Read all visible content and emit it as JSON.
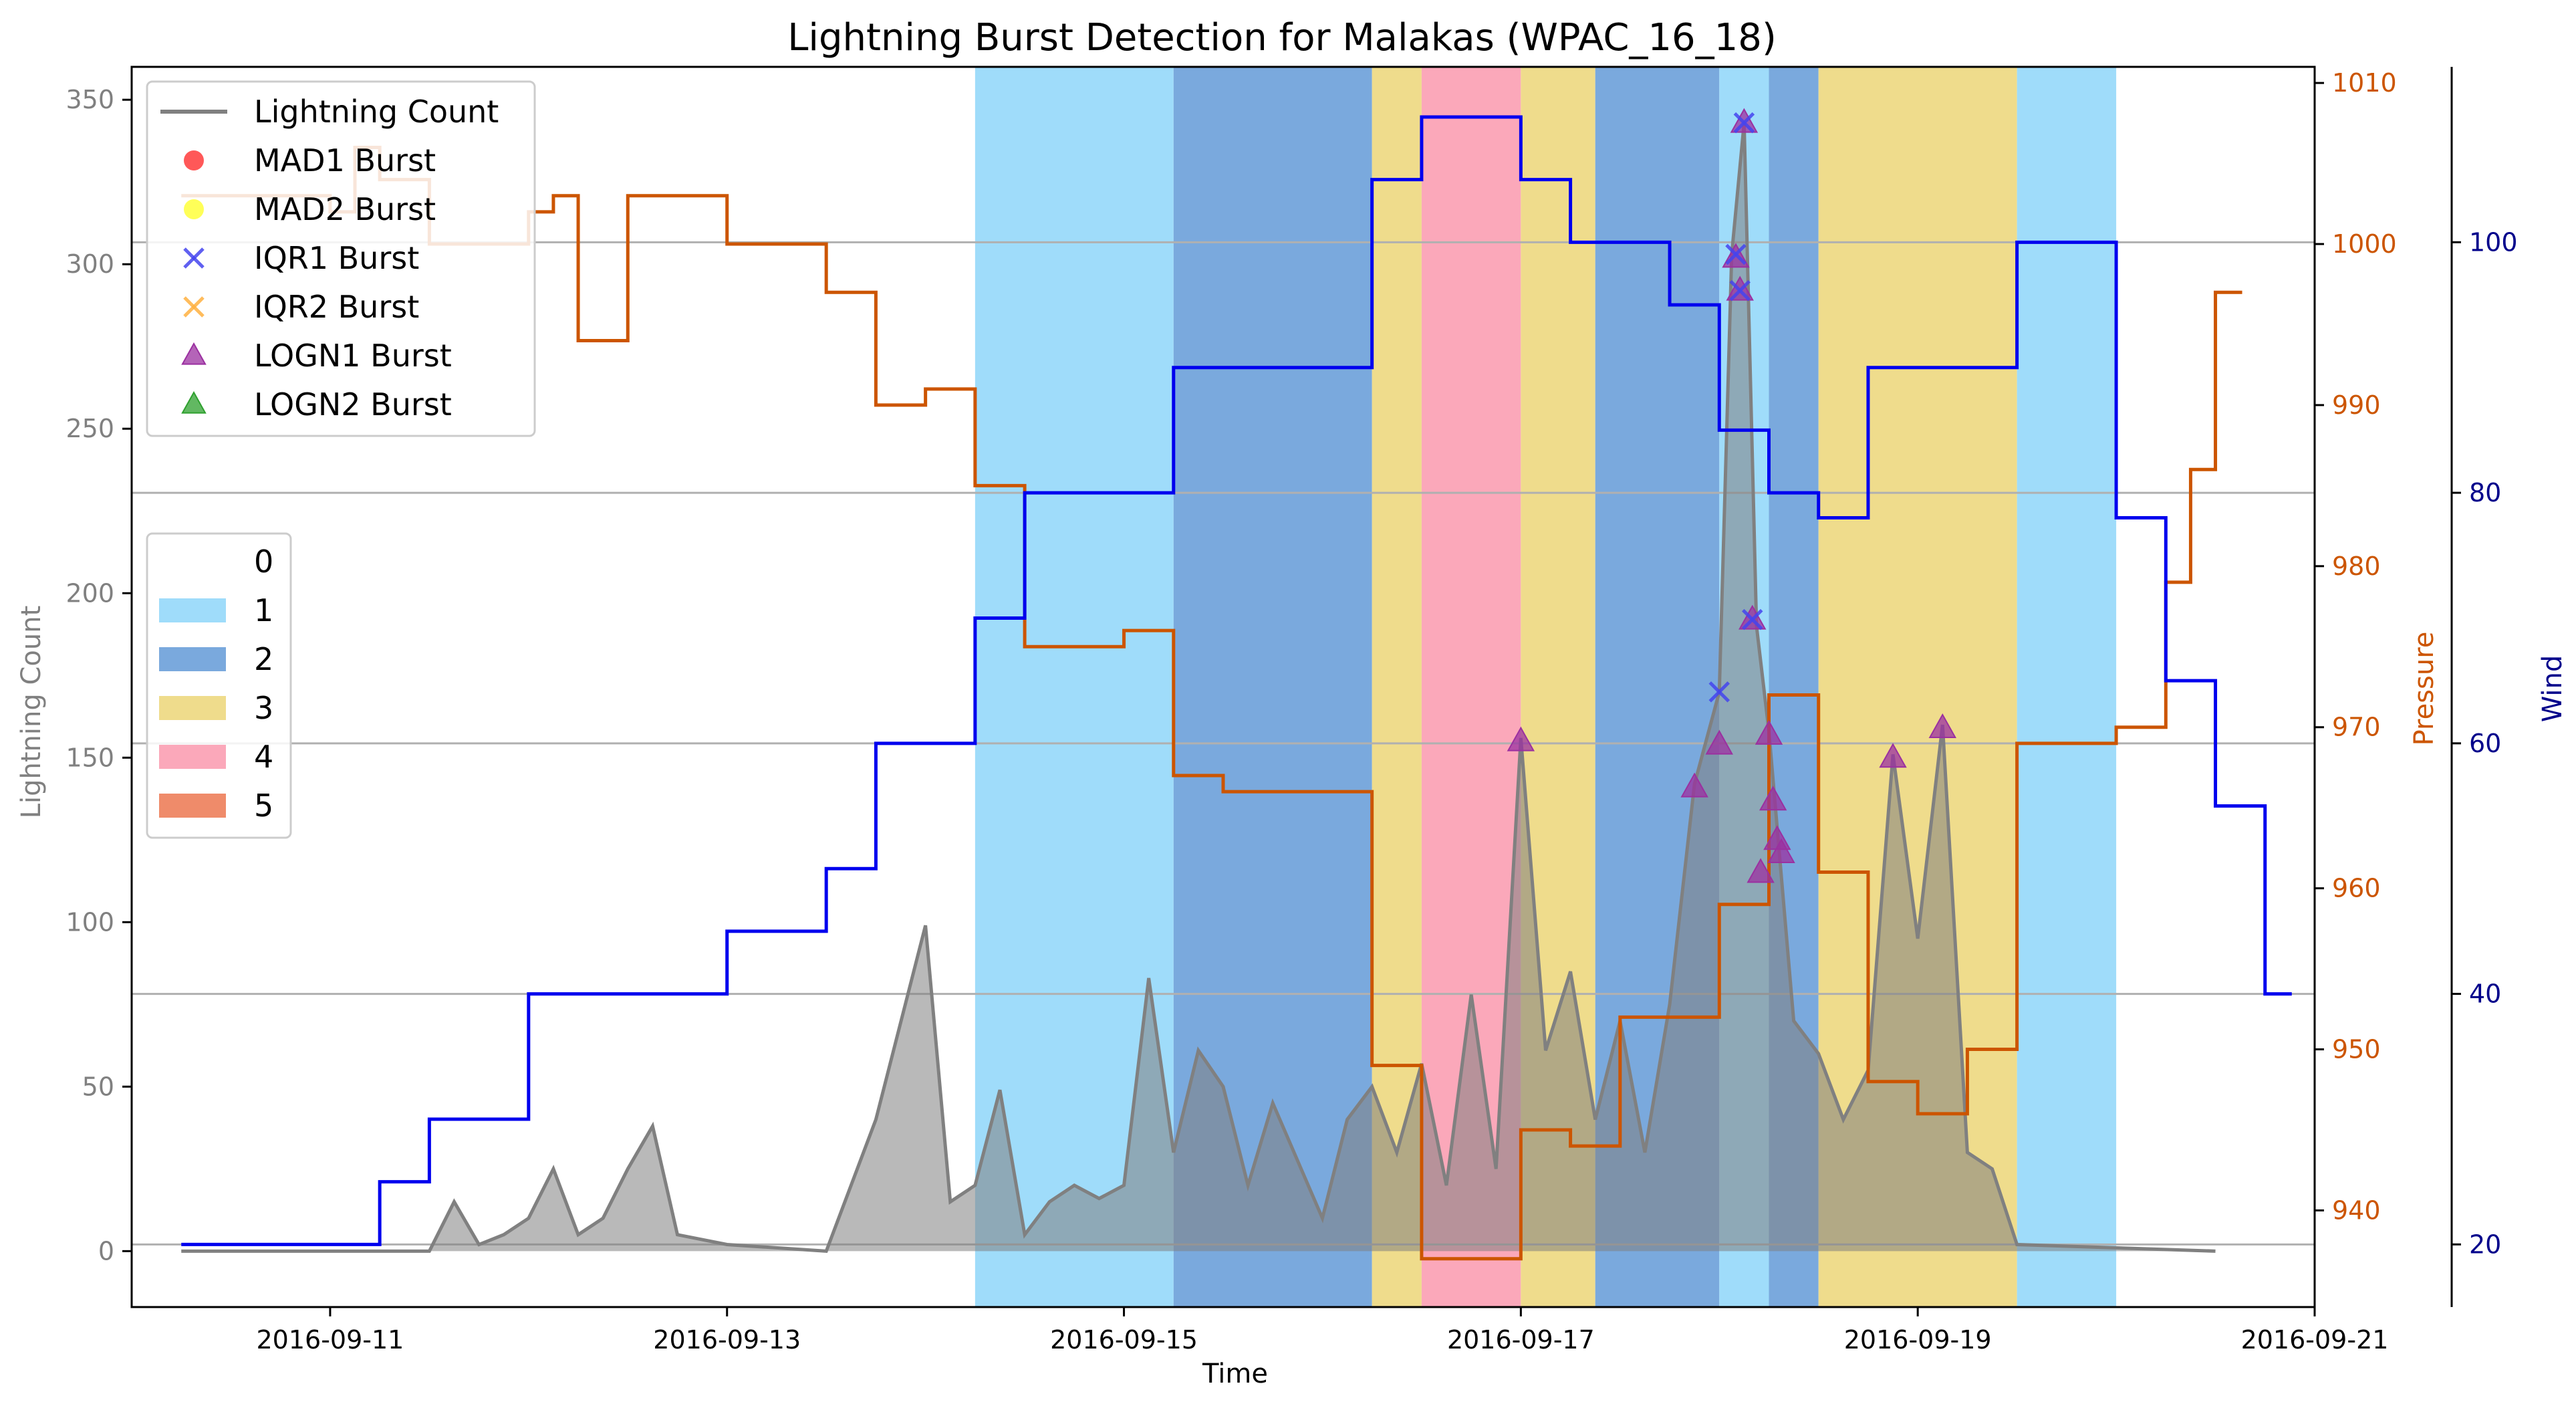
{
  "chart_data": {
    "type": "line",
    "title": "Lightning Burst Detection for Malakas (WPAC_16_18)",
    "xlabel": "Time",
    "x_ticks": [
      "2016-09-11",
      "2016-09-13",
      "2016-09-15",
      "2016-09-17",
      "2016-09-19",
      "2016-09-21"
    ],
    "x_range": [
      "2016-09-10T00:00",
      "2016-09-21T00:00"
    ],
    "y_left": {
      "label": "Lightning Count",
      "range": [
        -17,
        360
      ],
      "ticks": [
        0,
        50,
        100,
        150,
        200,
        250,
        300,
        350
      ],
      "color": "#808080"
    },
    "y_right_pressure": {
      "label": "Pressure",
      "range": [
        934,
        1011
      ],
      "ticks": [
        940,
        950,
        960,
        970,
        980,
        990,
        1000,
        1010
      ],
      "color": "#cc5500"
    },
    "y_right_wind": {
      "label": "Wind",
      "range": [
        15,
        114
      ],
      "ticks": [
        20,
        40,
        60,
        80,
        100
      ],
      "color": "#00008b"
    },
    "grid": {
      "y_gridlines_at_wind": [
        20,
        40,
        60,
        80,
        100
      ]
    },
    "category_colors": {
      "0": "#ffffff",
      "1": "#9fdcfa",
      "2": "#7aa9dd",
      "3": "#efdc8c",
      "4": "#fba8ba",
      "5": "#ef8b6a"
    },
    "category_spans": [
      {
        "start": "2016-09-14T06:00",
        "end": "2016-09-15T06:00",
        "category": "1"
      },
      {
        "start": "2016-09-15T06:00",
        "end": "2016-09-16T06:00",
        "category": "2"
      },
      {
        "start": "2016-09-16T06:00",
        "end": "2016-09-16T12:00",
        "category": "3"
      },
      {
        "start": "2016-09-16T12:00",
        "end": "2016-09-17T00:00",
        "category": "4"
      },
      {
        "start": "2016-09-17T00:00",
        "end": "2016-09-17T09:00",
        "category": "3"
      },
      {
        "start": "2016-09-17T09:00",
        "end": "2016-09-18T00:00",
        "category": "2"
      },
      {
        "start": "2016-09-18T00:00",
        "end": "2016-09-18T06:00",
        "category": "1"
      },
      {
        "start": "2016-09-18T06:00",
        "end": "2016-09-18T12:00",
        "category": "2"
      },
      {
        "start": "2016-09-18T12:00",
        "end": "2016-09-19T12:00",
        "category": "3"
      },
      {
        "start": "2016-09-19T12:00",
        "end": "2016-09-20T00:00",
        "category": "1"
      }
    ],
    "pressure_series": {
      "name": "Pressure",
      "steps": [
        [
          "2016-09-10T06:00",
          1003
        ],
        [
          "2016-09-11T00:00",
          1002
        ],
        [
          "2016-09-11T03:00",
          1006
        ],
        [
          "2016-09-11T06:00",
          1004
        ],
        [
          "2016-09-11T12:00",
          1000
        ],
        [
          "2016-09-12T00:00",
          1002
        ],
        [
          "2016-09-12T03:00",
          1003
        ],
        [
          "2016-09-12T06:00",
          994
        ],
        [
          "2016-09-12T12:00",
          1003
        ],
        [
          "2016-09-13T00:00",
          1000
        ],
        [
          "2016-09-13T12:00",
          997
        ],
        [
          "2016-09-13T18:00",
          990
        ],
        [
          "2016-09-14T00:00",
          991
        ],
        [
          "2016-09-14T06:00",
          985
        ],
        [
          "2016-09-14T12:00",
          975
        ],
        [
          "2016-09-15T00:00",
          976
        ],
        [
          "2016-09-15T06:00",
          967
        ],
        [
          "2016-09-15T12:00",
          966
        ],
        [
          "2016-09-16T06:00",
          949
        ],
        [
          "2016-09-16T12:00",
          937
        ],
        [
          "2016-09-17T00:00",
          945
        ],
        [
          "2016-09-17T06:00",
          944
        ],
        [
          "2016-09-17T12:00",
          952
        ],
        [
          "2016-09-18T00:00",
          959
        ],
        [
          "2016-09-18T06:00",
          972
        ],
        [
          "2016-09-18T12:00",
          961
        ],
        [
          "2016-09-18T18:00",
          961
        ],
        [
          "2016-09-18T18:00",
          948
        ],
        [
          "2016-09-19T00:00",
          946
        ],
        [
          "2016-09-19T06:00",
          950
        ],
        [
          "2016-09-19T12:00",
          969
        ],
        [
          "2016-09-20T00:00",
          970
        ],
        [
          "2016-09-20T06:00",
          979
        ],
        [
          "2016-09-20T09:00",
          986
        ],
        [
          "2016-09-20T12:00",
          997
        ]
      ],
      "end": "2016-09-20T12:00"
    },
    "wind_series": {
      "name": "Wind",
      "steps": [
        [
          "2016-09-10T06:00",
          20
        ],
        [
          "2016-09-11T06:00",
          25
        ],
        [
          "2016-09-11T12:00",
          30
        ],
        [
          "2016-09-12T00:00",
          40
        ],
        [
          "2016-09-13T00:00",
          45
        ],
        [
          "2016-09-13T12:00",
          50
        ],
        [
          "2016-09-13T18:00",
          60
        ],
        [
          "2016-09-14T06:00",
          70
        ],
        [
          "2016-09-14T12:00",
          80
        ],
        [
          "2016-09-15T06:00",
          90
        ],
        [
          "2016-09-16T06:00",
          105
        ],
        [
          "2016-09-16T12:00",
          110
        ],
        [
          "2016-09-17T00:00",
          105
        ],
        [
          "2016-09-17T06:00",
          100
        ],
        [
          "2016-09-17T18:00",
          95
        ],
        [
          "2016-09-18T00:00",
          85
        ],
        [
          "2016-09-18T06:00",
          80
        ],
        [
          "2016-09-18T12:00",
          78
        ],
        [
          "2016-09-18T18:00",
          90
        ],
        [
          "2016-09-19T12:00",
          100
        ],
        [
          "2016-09-20T00:00",
          78
        ],
        [
          "2016-09-20T06:00",
          65
        ],
        [
          "2016-09-20T12:00",
          55
        ],
        [
          "2016-09-20T18:00",
          40
        ]
      ],
      "end": "2016-09-20T12:00"
    },
    "lightning_series": {
      "name": "Lightning Count",
      "points": [
        [
          "2016-09-10T06:00",
          0
        ],
        [
          "2016-09-11T12:00",
          0
        ],
        [
          "2016-09-11T15:00",
          15
        ],
        [
          "2016-09-11T18:00",
          2
        ],
        [
          "2016-09-11T21:00",
          5
        ],
        [
          "2016-09-12T00:00",
          10
        ],
        [
          "2016-09-12T03:00",
          25
        ],
        [
          "2016-09-12T06:00",
          5
        ],
        [
          "2016-09-12T09:00",
          10
        ],
        [
          "2016-09-12T12:00",
          25
        ],
        [
          "2016-09-12T15:00",
          38
        ],
        [
          "2016-09-12T18:00",
          5
        ],
        [
          "2016-09-13T00:00",
          2
        ],
        [
          "2016-09-13T12:00",
          0
        ],
        [
          "2016-09-13T18:00",
          40
        ],
        [
          "2016-09-14T00:00",
          99
        ],
        [
          "2016-09-14T03:00",
          15
        ],
        [
          "2016-09-14T06:00",
          20
        ],
        [
          "2016-09-14T09:00",
          49
        ],
        [
          "2016-09-14T12:00",
          5
        ],
        [
          "2016-09-14T15:00",
          15
        ],
        [
          "2016-09-14T18:00",
          20
        ],
        [
          "2016-09-14T21:00",
          16
        ],
        [
          "2016-09-15T00:00",
          20
        ],
        [
          "2016-09-15T03:00",
          83
        ],
        [
          "2016-09-15T06:00",
          30
        ],
        [
          "2016-09-15T09:00",
          61
        ],
        [
          "2016-09-15T12:00",
          50
        ],
        [
          "2016-09-15T15:00",
          20
        ],
        [
          "2016-09-15T18:00",
          45
        ],
        [
          "2016-09-16T00:00",
          10
        ],
        [
          "2016-09-16T03:00",
          40
        ],
        [
          "2016-09-16T06:00",
          50
        ],
        [
          "2016-09-16T09:00",
          30
        ],
        [
          "2016-09-16T12:00",
          57
        ],
        [
          "2016-09-16T15:00",
          20
        ],
        [
          "2016-09-16T18:00",
          78
        ],
        [
          "2016-09-16T21:00",
          25
        ],
        [
          "2016-09-17T00:00",
          156
        ],
        [
          "2016-09-17T03:00",
          61
        ],
        [
          "2016-09-17T06:00",
          85
        ],
        [
          "2016-09-17T09:00",
          40
        ],
        [
          "2016-09-17T12:00",
          70
        ],
        [
          "2016-09-17T15:00",
          30
        ],
        [
          "2016-09-17T18:00",
          75
        ],
        [
          "2016-09-17T21:00",
          142
        ],
        [
          "2016-09-18T00:00",
          170
        ],
        [
          "2016-09-18T01:30",
          303
        ],
        [
          "2016-09-18T03:00",
          343
        ],
        [
          "2016-09-18T04:30",
          190
        ],
        [
          "2016-09-18T06:00",
          158
        ],
        [
          "2016-09-18T09:00",
          70
        ],
        [
          "2016-09-18T12:00",
          60
        ],
        [
          "2016-09-18T15:00",
          40
        ],
        [
          "2016-09-18T18:00",
          55
        ],
        [
          "2016-09-18T21:00",
          151
        ],
        [
          "2016-09-19T00:00",
          95
        ],
        [
          "2016-09-19T03:00",
          160
        ],
        [
          "2016-09-19T06:00",
          30
        ],
        [
          "2016-09-19T09:00",
          25
        ],
        [
          "2016-09-19T12:00",
          2
        ],
        [
          "2016-09-20T12:00",
          0
        ]
      ]
    },
    "iqr1_points": [
      [
        "2016-09-18T00:00",
        170
      ],
      [
        "2016-09-18T02:00",
        303
      ],
      [
        "2016-09-18T02:30",
        292
      ],
      [
        "2016-09-18T03:00",
        343
      ],
      [
        "2016-09-18T04:00",
        192
      ]
    ],
    "logn1_points": [
      [
        "2016-09-17T00:00",
        155
      ],
      [
        "2016-09-17T21:00",
        141
      ],
      [
        "2016-09-18T00:00",
        154
      ],
      [
        "2016-09-18T02:00",
        302
      ],
      [
        "2016-09-18T02:30",
        292
      ],
      [
        "2016-09-18T03:00",
        343
      ],
      [
        "2016-09-18T04:00",
        192
      ],
      [
        "2016-09-18T06:00",
        157
      ],
      [
        "2016-09-18T06:30",
        137
      ],
      [
        "2016-09-18T07:00",
        125
      ],
      [
        "2016-09-18T07:30",
        121
      ],
      [
        "2016-09-18T05:00",
        115
      ],
      [
        "2016-09-18T21:00",
        150
      ],
      [
        "2016-09-19T03:00",
        159
      ]
    ],
    "legend_series": [
      {
        "label": "Lightning Count",
        "marker": "line",
        "color": "#808080"
      },
      {
        "label": "MAD1 Burst",
        "marker": "circle",
        "color": "#ff3b3b"
      },
      {
        "label": "MAD2 Burst",
        "marker": "circle",
        "color": "#ffff3b"
      },
      {
        "label": "IQR1 Burst",
        "marker": "x",
        "color": "#4444ee"
      },
      {
        "label": "IQR2 Burst",
        "marker": "x",
        "color": "#ffb040"
      },
      {
        "label": "LOGN1 Burst",
        "marker": "triangle",
        "color": "#9b30a0"
      },
      {
        "label": "LOGN2 Burst",
        "marker": "triangle",
        "color": "#2ea02e"
      }
    ],
    "legend_categories": [
      {
        "label": "0"
      },
      {
        "label": "1"
      },
      {
        "label": "2"
      },
      {
        "label": "3"
      },
      {
        "label": "4"
      },
      {
        "label": "5"
      }
    ]
  }
}
